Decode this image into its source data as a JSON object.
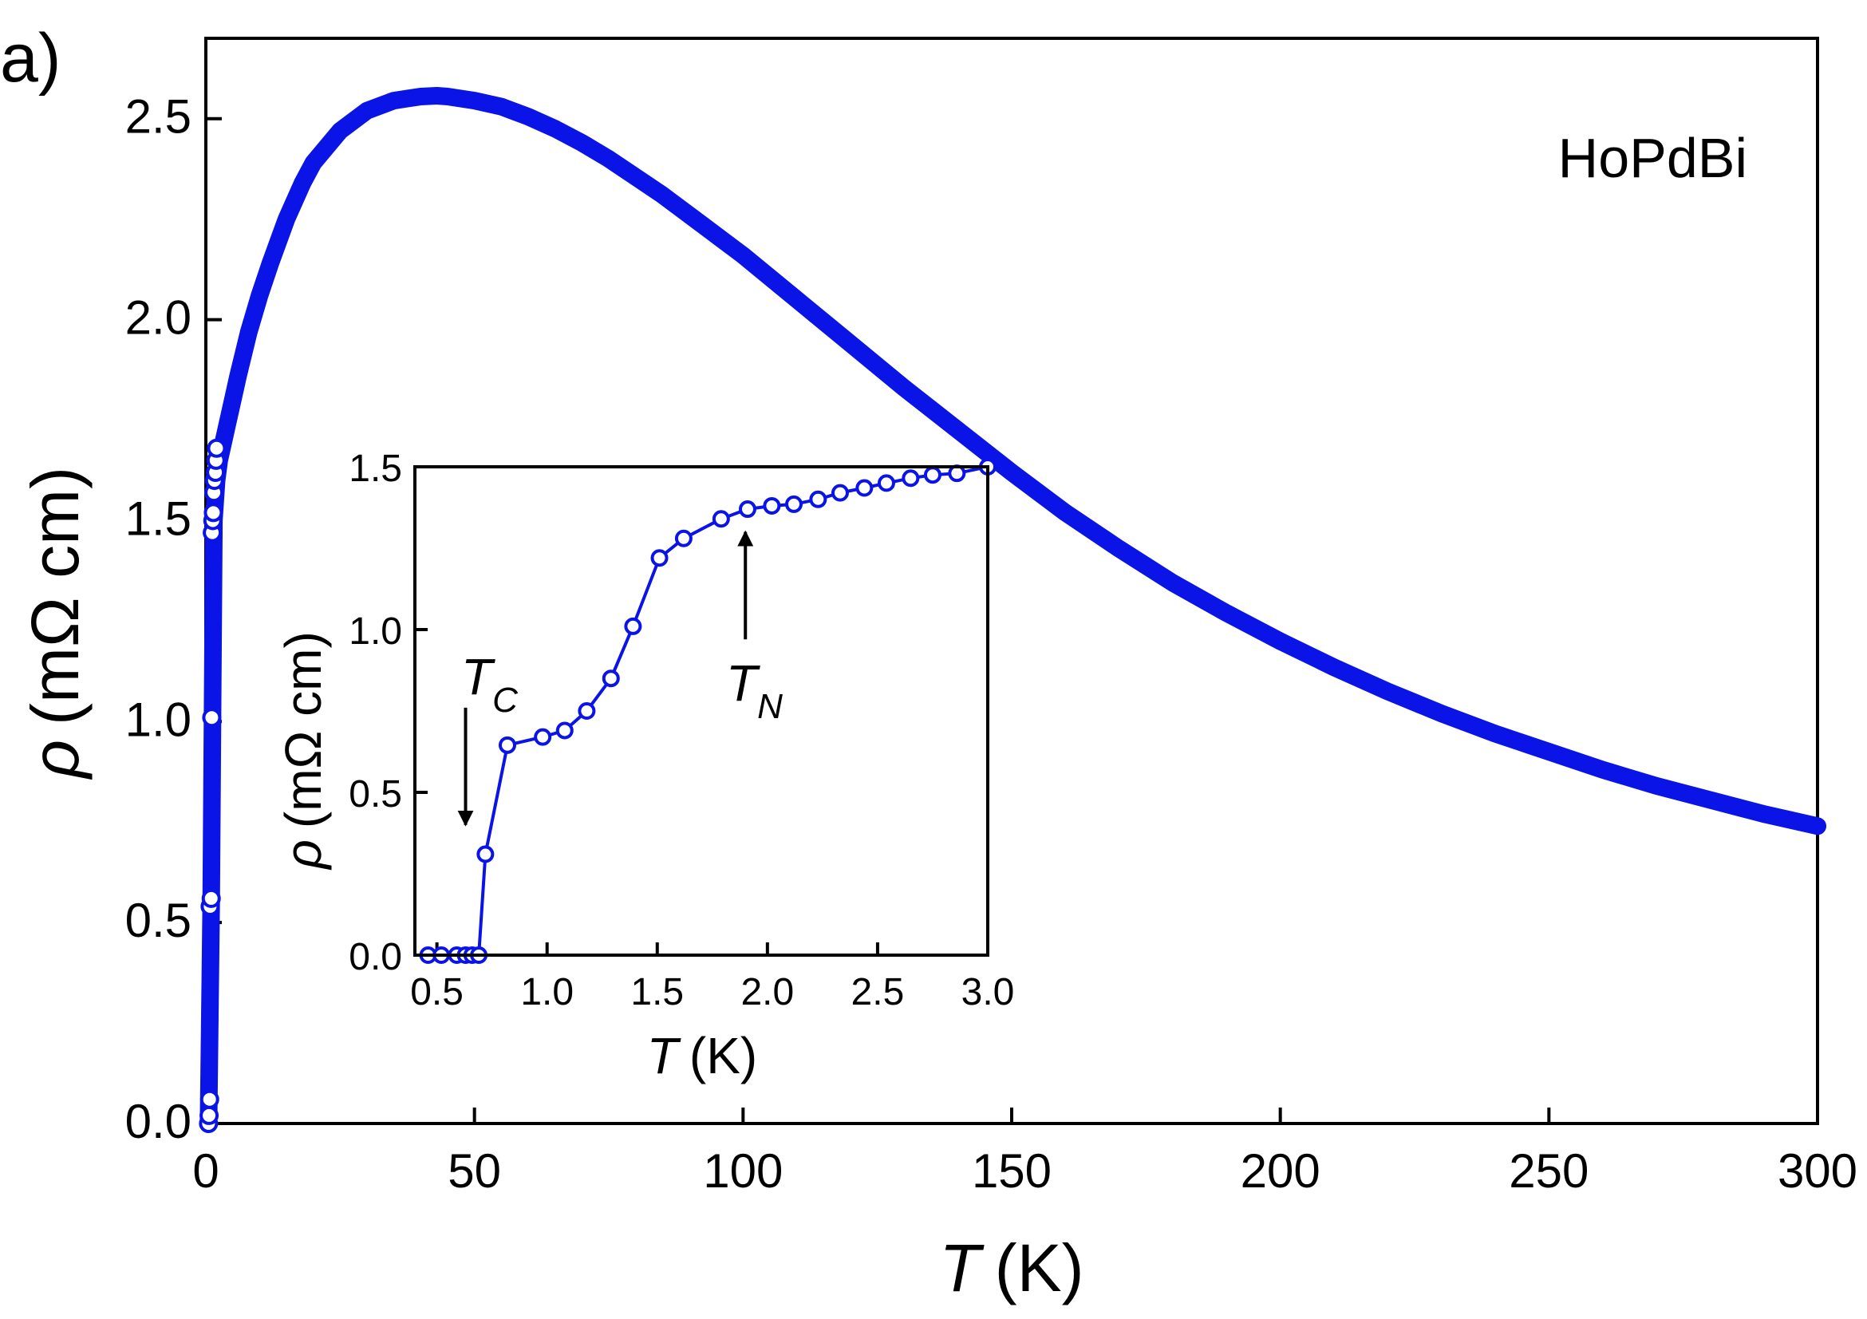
{
  "panel_label": "a)",
  "chart_data": [
    {
      "type": "line",
      "title": "",
      "annotation": "HoPdBi",
      "xlabel": "T (K)",
      "xlabel_var": "T",
      "xlabel_unit": "(K)",
      "ylabel": "ρ (mΩ cm)",
      "ylabel_var": "ρ",
      "ylabel_unit": "(mΩ cm)",
      "xlim": [
        0,
        300
      ],
      "ylim": [
        0,
        2.7
      ],
      "xticks": [
        0,
        50,
        100,
        150,
        200,
        250,
        300
      ],
      "xtick_labels": [
        "0",
        "50",
        "100",
        "150",
        "200",
        "250",
        "300"
      ],
      "yticks": [
        0,
        0.5,
        1.0,
        1.5,
        2.0,
        2.5
      ],
      "ytick_labels": [
        "0.0",
        "0.5",
        "1.0",
        "1.5",
        "2.0",
        "2.5"
      ],
      "grid": false,
      "color": "#0a14e6",
      "series": [
        {
          "name": "HoPdBi",
          "x": [
            0.5,
            1,
            1.5,
            2,
            2.5,
            3,
            4,
            5,
            6,
            8,
            10,
            12,
            15,
            18,
            20,
            25,
            30,
            35,
            40,
            43,
            45,
            50,
            55,
            60,
            65,
            70,
            75,
            80,
            85,
            90,
            95,
            100,
            110,
            120,
            130,
            140,
            150,
            160,
            170,
            180,
            190,
            200,
            210,
            220,
            230,
            240,
            250,
            260,
            270,
            280,
            290,
            300
          ],
          "y": [
            0.0,
            0.55,
            1.5,
            1.6,
            1.65,
            1.68,
            1.74,
            1.8,
            1.86,
            1.97,
            2.06,
            2.14,
            2.25,
            2.34,
            2.39,
            2.47,
            2.52,
            2.545,
            2.555,
            2.557,
            2.555,
            2.545,
            2.53,
            2.505,
            2.475,
            2.44,
            2.4,
            2.355,
            2.31,
            2.26,
            2.21,
            2.16,
            2.05,
            1.94,
            1.83,
            1.725,
            1.62,
            1.52,
            1.43,
            1.345,
            1.27,
            1.2,
            1.135,
            1.075,
            1.02,
            0.97,
            0.925,
            0.88,
            0.84,
            0.805,
            0.77,
            0.74
          ]
        }
      ],
      "low_t_points": {
        "x": [
          0.5,
          0.6,
          0.7,
          0.8,
          1.0,
          1.1,
          1.2,
          1.3,
          1.4,
          1.5,
          1.6,
          1.8,
          1.9,
          2.0
        ],
        "y": [
          0.0,
          0.02,
          0.06,
          0.54,
          0.56,
          1.01,
          1.47,
          1.5,
          1.52,
          1.57,
          1.6,
          1.62,
          1.65,
          1.68
        ]
      }
    },
    {
      "type": "line",
      "title": "",
      "xlabel": "T (K)",
      "xlabel_var": "T",
      "xlabel_unit": "(K)",
      "ylabel": "ρ (mΩ cm)",
      "ylabel_var": "ρ",
      "ylabel_unit": "(mΩ cm)",
      "xlim": [
        0.4,
        3.0
      ],
      "ylim": [
        0,
        1.5
      ],
      "xticks": [
        0.5,
        1.0,
        1.5,
        2.0,
        2.5,
        3.0
      ],
      "xtick_labels": [
        "0.5",
        "1.0",
        "1.5",
        "2.0",
        "2.5",
        "3.0"
      ],
      "yticks": [
        0,
        0.5,
        1.0,
        1.5
      ],
      "ytick_labels": [
        "0.0",
        "0.5",
        "1.0",
        "1.5"
      ],
      "grid": false,
      "color": "#0a14e6",
      "series": [
        {
          "name": "HoPdBi (inset)",
          "x": [
            0.46,
            0.52,
            0.59,
            0.63,
            0.66,
            0.69,
            0.72,
            0.82,
            0.98,
            1.08,
            1.18,
            1.29,
            1.39,
            1.51,
            1.62,
            1.79,
            1.91,
            2.02,
            2.12,
            2.23,
            2.33,
            2.44,
            2.54,
            2.65,
            2.75,
            2.86,
            3.0
          ],
          "y": [
            0.0,
            0.0,
            0.0,
            0.0,
            0.0,
            0.0,
            0.31,
            0.645,
            0.67,
            0.69,
            0.75,
            0.85,
            1.01,
            1.22,
            1.28,
            1.34,
            1.37,
            1.38,
            1.385,
            1.4,
            1.42,
            1.435,
            1.45,
            1.465,
            1.475,
            1.48,
            1.5
          ]
        }
      ],
      "annotations": [
        {
          "name": "Tc",
          "symbol": "T",
          "subscript": "C",
          "x": 0.63,
          "arrow_from_y": 0.76,
          "arrow_to_y": 0.4,
          "direction": "down"
        },
        {
          "name": "Tn",
          "symbol": "T",
          "subscript": "N",
          "x": 1.9,
          "arrow_from_y": 0.97,
          "arrow_to_y": 1.3,
          "direction": "up"
        }
      ]
    }
  ]
}
